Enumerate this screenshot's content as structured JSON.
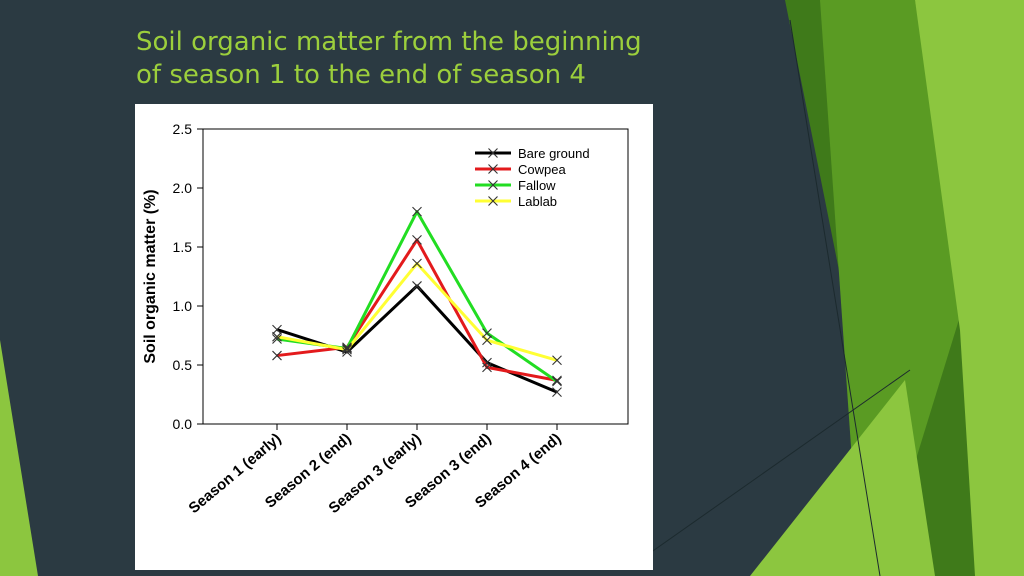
{
  "slide": {
    "title_line1": "Soil organic matter from the beginning",
    "title_line2": "of season 1 to the end of season 4"
  },
  "colors": {
    "background": "#2b3a42",
    "title": "#9ccf3c",
    "accent_green_1": "#8cc63f",
    "accent_green_2": "#5a9b23",
    "accent_green_3": "#3f7a1a"
  },
  "chart_data": {
    "type": "line",
    "title": "",
    "xlabel": "",
    "ylabel": "Soil organic matter (%)",
    "ylim": [
      0,
      2.5
    ],
    "yticks": [
      "0.0",
      "0.5",
      "1.0",
      "1.5",
      "2.0",
      "2.5"
    ],
    "categories": [
      "Season 1 (early)",
      "Season 2 (end)",
      "Season 3 (early)",
      "Season 3 (end)",
      "Season 4 (end)"
    ],
    "series": [
      {
        "name": "Bare ground",
        "color": "#000000",
        "values": [
          0.8,
          0.61,
          1.17,
          0.52,
          0.27
        ]
      },
      {
        "name": "Cowpea",
        "color": "#e31a1c",
        "values": [
          0.58,
          0.65,
          1.56,
          0.48,
          0.37
        ]
      },
      {
        "name": "Fallow",
        "color": "#22dd22",
        "values": [
          0.72,
          0.64,
          1.8,
          0.77,
          0.36
        ]
      },
      {
        "name": "Lablab",
        "color": "#ffff33",
        "values": [
          0.74,
          0.63,
          1.36,
          0.71,
          0.54
        ]
      }
    ],
    "legend_position": "top-right",
    "marker": "x",
    "grid": false
  }
}
